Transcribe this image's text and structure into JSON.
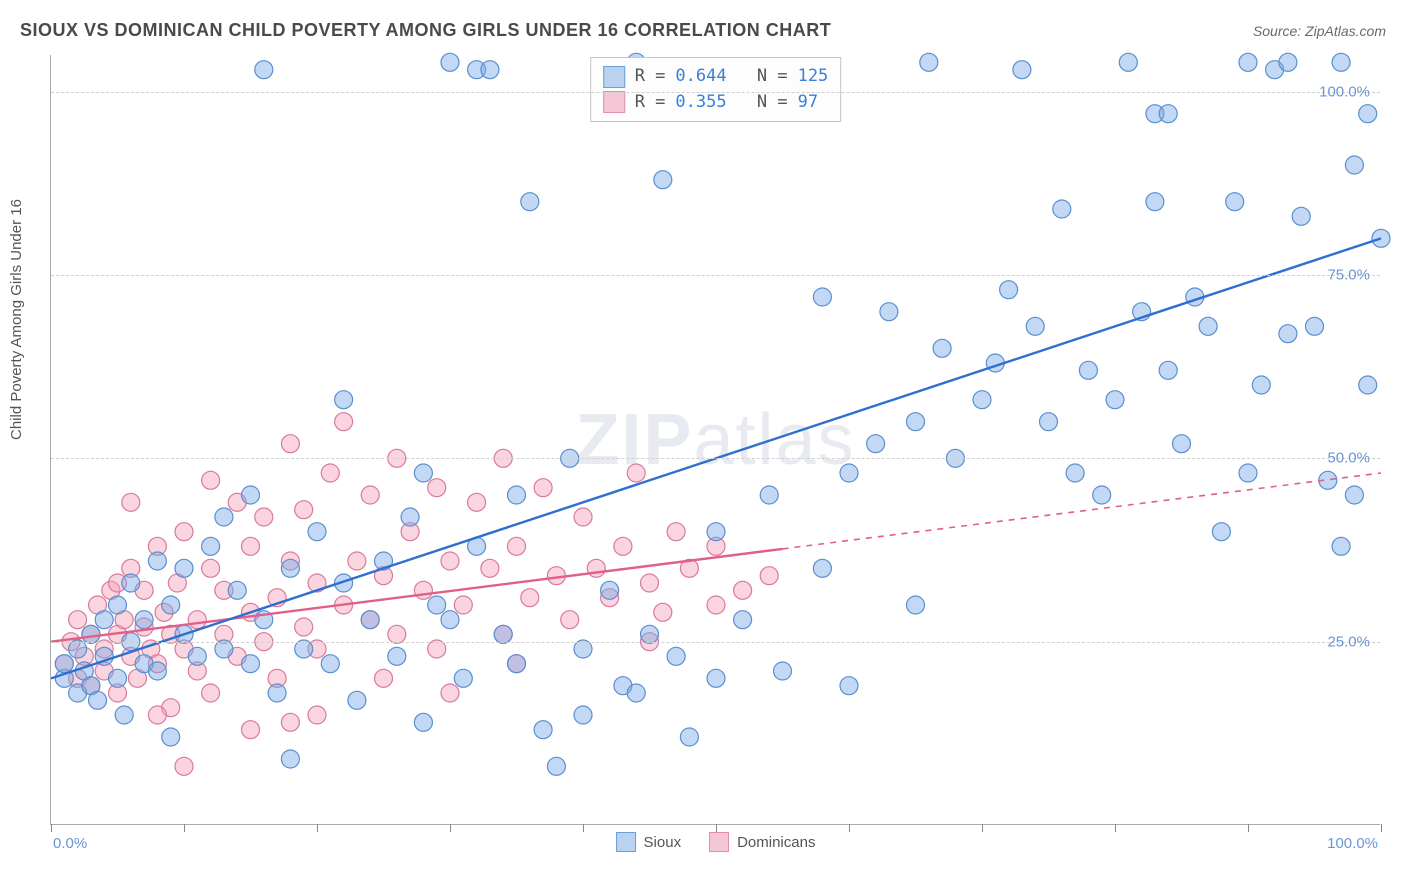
{
  "title": "SIOUX VS DOMINICAN CHILD POVERTY AMONG GIRLS UNDER 16 CORRELATION CHART",
  "source_label": "Source: ZipAtlas.com",
  "watermark": {
    "bold": "ZIP",
    "rest": "atlas"
  },
  "chart": {
    "type": "scatter",
    "y_axis_label": "Child Poverty Among Girls Under 16",
    "xlim": [
      0,
      100
    ],
    "ylim": [
      0,
      105
    ],
    "x_ticks": [
      0,
      10,
      20,
      30,
      40,
      50,
      60,
      70,
      80,
      90,
      100
    ],
    "y_gridlines": [
      25,
      50,
      75,
      100
    ],
    "x_axis_start_label": "0.0%",
    "x_axis_end_label": "100.0%",
    "y_tick_labels": [
      "25.0%",
      "50.0%",
      "75.0%",
      "100.0%"
    ],
    "background_color": "#ffffff",
    "grid_color": "#d0d0d0",
    "axis_color": "#aaaaaa",
    "marker_radius": 9,
    "marker_stroke_width": 1.2,
    "trend_line_width": 2.4
  },
  "series": {
    "sioux": {
      "label": "Sioux",
      "fill": "rgba(120,169,230,0.45)",
      "stroke": "#5a8fce",
      "swatch_fill": "#b8d2f0",
      "swatch_border": "#6a9fd8",
      "R": "0.644",
      "N": "125",
      "trend": {
        "x1": 0,
        "y1": 20,
        "x2": 100,
        "y2": 80,
        "color": "#2f6fd0",
        "dash_from_x": null
      },
      "points": [
        [
          1,
          20
        ],
        [
          1,
          22
        ],
        [
          2,
          18
        ],
        [
          2,
          24
        ],
        [
          2.5,
          21
        ],
        [
          3,
          19
        ],
        [
          3,
          26
        ],
        [
          3.5,
          17
        ],
        [
          4,
          23
        ],
        [
          4,
          28
        ],
        [
          5,
          20
        ],
        [
          5,
          30
        ],
        [
          5.5,
          15
        ],
        [
          6,
          25
        ],
        [
          6,
          33
        ],
        [
          7,
          22
        ],
        [
          7,
          28
        ],
        [
          8,
          36
        ],
        [
          8,
          21
        ],
        [
          9,
          30
        ],
        [
          9,
          12
        ],
        [
          10,
          26
        ],
        [
          10,
          35
        ],
        [
          11,
          23
        ],
        [
          12,
          38
        ],
        [
          13,
          24
        ],
        [
          13,
          42
        ],
        [
          14,
          32
        ],
        [
          15,
          22
        ],
        [
          15,
          45
        ],
        [
          16,
          28
        ],
        [
          16,
          103
        ],
        [
          17,
          18
        ],
        [
          18,
          35
        ],
        [
          18,
          9
        ],
        [
          19,
          24
        ],
        [
          20,
          40
        ],
        [
          21,
          22
        ],
        [
          22,
          33
        ],
        [
          22,
          58
        ],
        [
          23,
          17
        ],
        [
          24,
          28
        ],
        [
          25,
          36
        ],
        [
          26,
          23
        ],
        [
          27,
          42
        ],
        [
          28,
          14
        ],
        [
          29,
          30
        ],
        [
          30,
          104
        ],
        [
          31,
          20
        ],
        [
          32,
          38
        ],
        [
          32,
          103
        ],
        [
          33,
          103
        ],
        [
          34,
          26
        ],
        [
          35,
          22
        ],
        [
          36,
          85
        ],
        [
          37,
          13
        ],
        [
          38,
          8
        ],
        [
          39,
          50
        ],
        [
          40,
          24
        ],
        [
          42,
          32
        ],
        [
          43,
          19
        ],
        [
          44,
          104
        ],
        [
          45,
          26
        ],
        [
          46,
          88
        ],
        [
          47,
          23
        ],
        [
          48,
          12
        ],
        [
          50,
          40
        ],
        [
          52,
          28
        ],
        [
          54,
          45
        ],
        [
          55,
          21
        ],
        [
          58,
          72
        ],
        [
          60,
          48
        ],
        [
          60,
          19
        ],
        [
          62,
          52
        ],
        [
          63,
          70
        ],
        [
          65,
          55
        ],
        [
          66,
          104
        ],
        [
          67,
          65
        ],
        [
          68,
          50
        ],
        [
          70,
          58
        ],
        [
          71,
          63
        ],
        [
          72,
          73
        ],
        [
          73,
          103
        ],
        [
          74,
          68
        ],
        [
          75,
          55
        ],
        [
          76,
          84
        ],
        [
          77,
          48
        ],
        [
          78,
          62
        ],
        [
          79,
          45
        ],
        [
          80,
          58
        ],
        [
          81,
          104
        ],
        [
          82,
          70
        ],
        [
          83,
          97
        ],
        [
          83,
          85
        ],
        [
          84,
          97
        ],
        [
          85,
          52
        ],
        [
          86,
          72
        ],
        [
          87,
          68
        ],
        [
          88,
          40
        ],
        [
          89,
          85
        ],
        [
          90,
          104
        ],
        [
          90,
          48
        ],
        [
          91,
          60
        ],
        [
          92,
          103
        ],
        [
          93,
          67
        ],
        [
          93,
          104
        ],
        [
          94,
          83
        ],
        [
          95,
          68
        ],
        [
          96,
          47
        ],
        [
          97,
          38
        ],
        [
          97,
          104
        ],
        [
          98,
          90
        ],
        [
          98,
          45
        ],
        [
          99,
          97
        ],
        [
          99,
          60
        ],
        [
          100,
          80
        ],
        [
          84,
          62
        ],
        [
          65,
          30
        ],
        [
          58,
          35
        ],
        [
          50,
          20
        ],
        [
          44,
          18
        ],
        [
          40,
          15
        ],
        [
          35,
          45
        ],
        [
          30,
          28
        ],
        [
          28,
          48
        ]
      ]
    },
    "dominican": {
      "label": "Dominicans",
      "fill": "rgba(244,160,185,0.45)",
      "stroke": "#d97a9a",
      "swatch_fill": "#f5c6d6",
      "swatch_border": "#e28fab",
      "R": "0.355",
      "N": "97",
      "trend": {
        "x1": 0,
        "y1": 25,
        "x2": 100,
        "y2": 48,
        "color": "#e06088",
        "dash_from_x": 55
      },
      "points": [
        [
          1,
          22
        ],
        [
          1.5,
          25
        ],
        [
          2,
          20
        ],
        [
          2,
          28
        ],
        [
          2.5,
          23
        ],
        [
          3,
          26
        ],
        [
          3,
          19
        ],
        [
          3.5,
          30
        ],
        [
          4,
          24
        ],
        [
          4,
          21
        ],
        [
          4.5,
          32
        ],
        [
          5,
          26
        ],
        [
          5,
          18
        ],
        [
          5.5,
          28
        ],
        [
          6,
          23
        ],
        [
          6,
          35
        ],
        [
          6.5,
          20
        ],
        [
          7,
          27
        ],
        [
          7,
          32
        ],
        [
          7.5,
          24
        ],
        [
          8,
          38
        ],
        [
          8,
          22
        ],
        [
          8.5,
          29
        ],
        [
          9,
          26
        ],
        [
          9,
          16
        ],
        [
          9.5,
          33
        ],
        [
          10,
          24
        ],
        [
          10,
          40
        ],
        [
          11,
          28
        ],
        [
          11,
          21
        ],
        [
          12,
          35
        ],
        [
          12,
          47
        ],
        [
          13,
          26
        ],
        [
          13,
          32
        ],
        [
          14,
          44
        ],
        [
          14,
          23
        ],
        [
          15,
          38
        ],
        [
          15,
          29
        ],
        [
          16,
          25
        ],
        [
          16,
          42
        ],
        [
          17,
          31
        ],
        [
          17,
          20
        ],
        [
          18,
          36
        ],
        [
          18,
          52
        ],
        [
          19,
          27
        ],
        [
          19,
          43
        ],
        [
          20,
          33
        ],
        [
          20,
          24
        ],
        [
          21,
          48
        ],
        [
          22,
          30
        ],
        [
          22,
          55
        ],
        [
          23,
          36
        ],
        [
          24,
          28
        ],
        [
          24,
          45
        ],
        [
          25,
          34
        ],
        [
          26,
          26
        ],
        [
          26,
          50
        ],
        [
          27,
          40
        ],
        [
          28,
          32
        ],
        [
          29,
          24
        ],
        [
          29,
          46
        ],
        [
          30,
          36
        ],
        [
          31,
          30
        ],
        [
          32,
          44
        ],
        [
          33,
          35
        ],
        [
          34,
          26
        ],
        [
          34,
          50
        ],
        [
          35,
          38
        ],
        [
          36,
          31
        ],
        [
          37,
          46
        ],
        [
          38,
          34
        ],
        [
          39,
          28
        ],
        [
          40,
          42
        ],
        [
          41,
          35
        ],
        [
          42,
          31
        ],
        [
          43,
          38
        ],
        [
          44,
          48
        ],
        [
          45,
          33
        ],
        [
          46,
          29
        ],
        [
          47,
          40
        ],
        [
          48,
          35
        ],
        [
          50,
          38
        ],
        [
          52,
          32
        ],
        [
          54,
          34
        ],
        [
          15,
          13
        ],
        [
          20,
          15
        ],
        [
          12,
          18
        ],
        [
          8,
          15
        ],
        [
          5,
          33
        ],
        [
          30,
          18
        ],
        [
          35,
          22
        ],
        [
          25,
          20
        ],
        [
          18,
          14
        ],
        [
          10,
          8
        ],
        [
          6,
          44
        ],
        [
          45,
          25
        ],
        [
          50,
          30
        ]
      ]
    }
  },
  "stat_labels": {
    "R": "R =",
    "N": "N ="
  }
}
